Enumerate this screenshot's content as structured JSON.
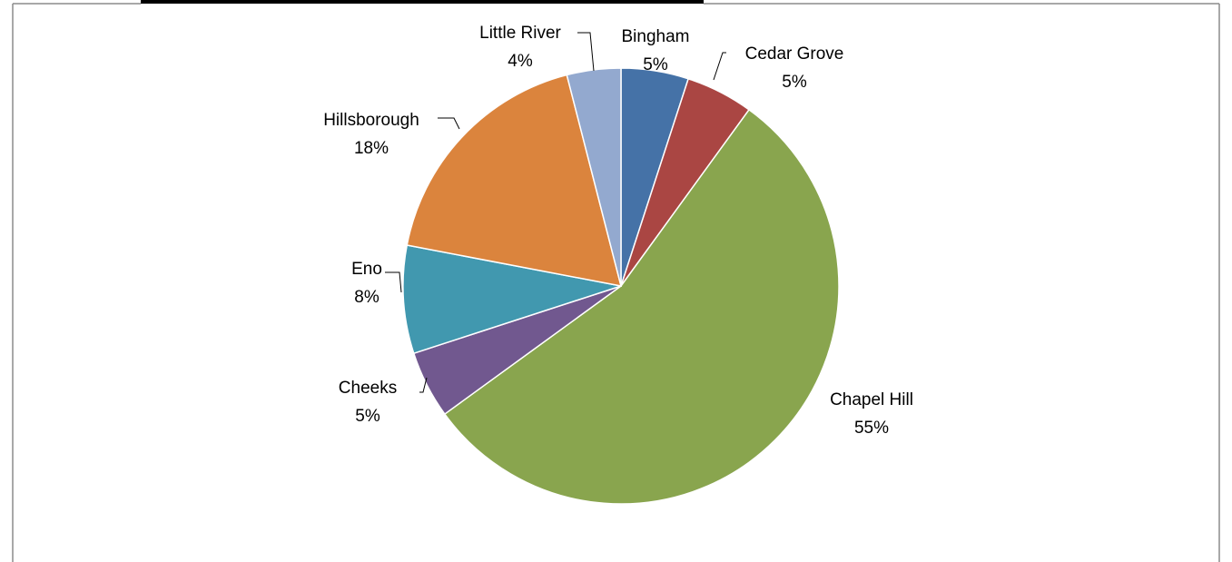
{
  "chart_data": {
    "type": "pie",
    "title": "",
    "legend": "none",
    "slices": [
      {
        "label": "Bingham",
        "percent_label": "5%",
        "value": 5,
        "color": "#4572A7"
      },
      {
        "label": "Cedar Grove",
        "percent_label": "5%",
        "value": 5,
        "color": "#AA4643"
      },
      {
        "label": "Chapel Hill",
        "percent_label": "55%",
        "value": 55,
        "color": "#89A54E"
      },
      {
        "label": "Cheeks",
        "percent_label": "5%",
        "value": 5,
        "color": "#71588F"
      },
      {
        "label": "Eno",
        "percent_label": "8%",
        "value": 8,
        "color": "#4198AF"
      },
      {
        "label": "Hillsborough",
        "percent_label": "18%",
        "value": 18,
        "color": "#DB843D"
      },
      {
        "label": "Little River",
        "percent_label": "4%",
        "value": 4,
        "color": "#93A9CF"
      }
    ]
  }
}
